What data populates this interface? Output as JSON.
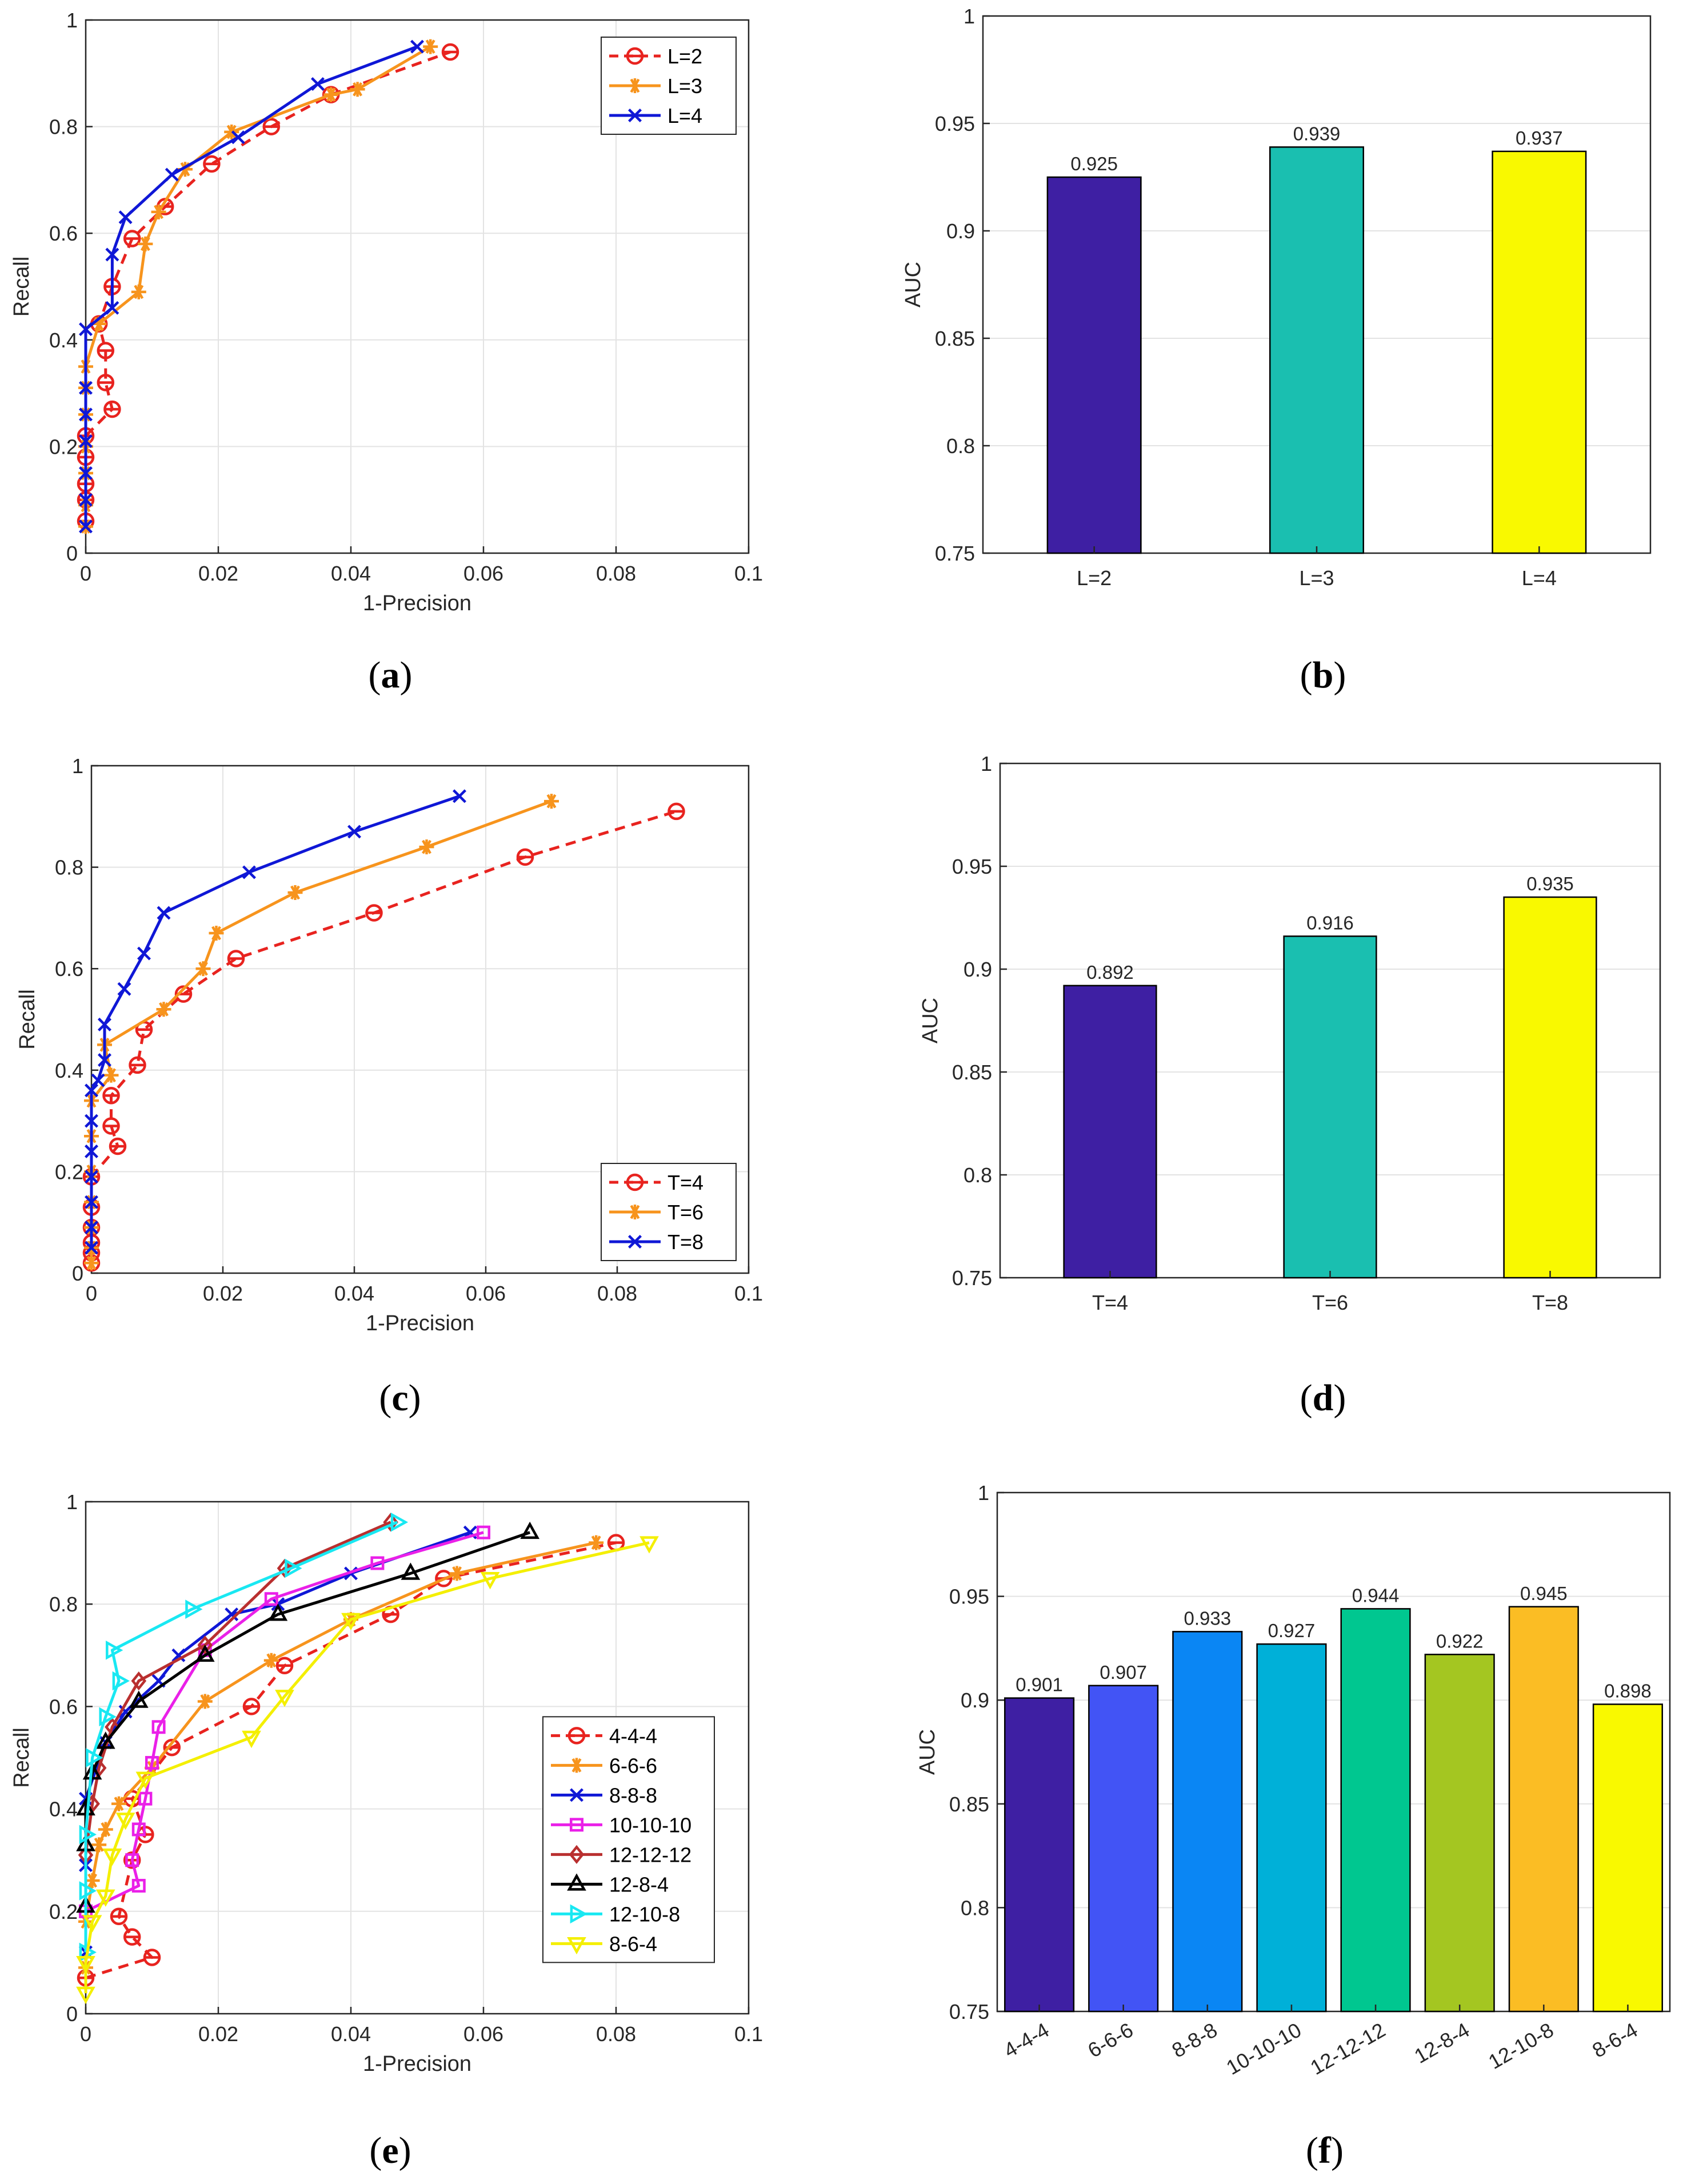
{
  "chart_data": [
    {
      "id": "a",
      "type": "line",
      "caption": "a",
      "xlabel": "1-Precision",
      "ylabel": "Recall",
      "xlim": [
        0,
        0.1
      ],
      "ylim": [
        0,
        1
      ],
      "xticks": [
        "0",
        "0.02",
        "0.04",
        "0.06",
        "0.08",
        "0.1"
      ],
      "yticks": [
        "0",
        "0.2",
        "0.4",
        "0.6",
        "0.8",
        "1"
      ],
      "grid": true,
      "legend_position": "top-right",
      "series": [
        {
          "name": "L=2",
          "color": "#e8231f",
          "dash": true,
          "marker": "circle-bar",
          "x": [
            0,
            0,
            0,
            0,
            0,
            0.004,
            0.003,
            0.003,
            0.002,
            0.004,
            0.007,
            0.012,
            0.019,
            0.028,
            0.037,
            0.055
          ],
          "y": [
            0.06,
            0.1,
            0.13,
            0.18,
            0.22,
            0.27,
            0.32,
            0.38,
            0.43,
            0.5,
            0.59,
            0.65,
            0.73,
            0.8,
            0.86,
            0.94
          ]
        },
        {
          "name": "L=3",
          "color": "#f7941d",
          "dash": false,
          "marker": "asterisk",
          "x": [
            0,
            0,
            0,
            0,
            0,
            0,
            0,
            0.002,
            0.008,
            0.009,
            0.011,
            0.015,
            0.022,
            0.037,
            0.041,
            0.052
          ],
          "y": [
            0.05,
            0.09,
            0.15,
            0.2,
            0.26,
            0.31,
            0.35,
            0.43,
            0.49,
            0.58,
            0.64,
            0.72,
            0.79,
            0.86,
            0.87,
            0.95
          ]
        },
        {
          "name": "L=4",
          "color": "#0f17d6",
          "dash": false,
          "marker": "x",
          "x": [
            0,
            0,
            0,
            0,
            0,
            0,
            0,
            0.004,
            0.004,
            0.006,
            0.013,
            0.023,
            0.035,
            0.05
          ],
          "y": [
            0.05,
            0.1,
            0.15,
            0.21,
            0.26,
            0.31,
            0.42,
            0.46,
            0.56,
            0.63,
            0.71,
            0.78,
            0.88,
            0.95
          ]
        }
      ]
    },
    {
      "id": "b",
      "type": "bar",
      "caption": "b",
      "ylabel": "AUC",
      "ylim": [
        0.75,
        1
      ],
      "yticks": [
        "0.75",
        "0.8",
        "0.85",
        "0.9",
        "0.95",
        "1"
      ],
      "grid": true,
      "categories": [
        "L=2",
        "L=3",
        "L=4"
      ],
      "values": [
        0.925,
        0.939,
        0.937
      ],
      "value_labels": [
        "0.925",
        "0.939",
        "0.937"
      ],
      "colors": [
        "#3e1fa3",
        "#1abfb0",
        "#f9f900"
      ]
    },
    {
      "id": "c",
      "type": "line",
      "caption": "c",
      "xlabel": "1-Precision",
      "ylabel": "Recall",
      "xlim": [
        0,
        0.1
      ],
      "ylim": [
        0,
        1
      ],
      "xticks": [
        "0",
        "0.02",
        "0.04",
        "0.06",
        "0.08",
        "0.1"
      ],
      "yticks": [
        "0",
        "0.2",
        "0.4",
        "0.6",
        "0.8",
        "1"
      ],
      "grid": true,
      "legend_position": "bottom-right",
      "series": [
        {
          "name": "T=4",
          "color": "#e8231f",
          "dash": true,
          "marker": "circle-bar",
          "x": [
            0,
            0,
            0,
            0,
            0,
            0,
            0.004,
            0.003,
            0.003,
            0.007,
            0.008,
            0.014,
            0.022,
            0.043,
            0.066,
            0.089
          ],
          "y": [
            0.02,
            0.04,
            0.06,
            0.09,
            0.13,
            0.19,
            0.25,
            0.29,
            0.35,
            0.41,
            0.48,
            0.55,
            0.62,
            0.71,
            0.82,
            0.91
          ]
        },
        {
          "name": "T=6",
          "color": "#f7941d",
          "dash": false,
          "marker": "asterisk",
          "x": [
            0,
            0,
            0,
            0,
            0,
            0,
            0,
            0.003,
            0.002,
            0.011,
            0.017,
            0.019,
            0.031,
            0.051,
            0.07
          ],
          "y": [
            0.02,
            0.05,
            0.09,
            0.14,
            0.2,
            0.27,
            0.34,
            0.39,
            0.45,
            0.52,
            0.6,
            0.67,
            0.75,
            0.84,
            0.93
          ]
        },
        {
          "name": "T=8",
          "color": "#0f17d6",
          "dash": false,
          "marker": "x",
          "x": [
            0,
            0,
            0,
            0,
            0,
            0,
            0,
            0.001,
            0.002,
            0.002,
            0.005,
            0.008,
            0.011,
            0.024,
            0.04,
            0.056
          ],
          "y": [
            0.05,
            0.09,
            0.14,
            0.19,
            0.24,
            0.3,
            0.36,
            0.38,
            0.42,
            0.49,
            0.56,
            0.63,
            0.71,
            0.79,
            0.87,
            0.94
          ]
        }
      ]
    },
    {
      "id": "d",
      "type": "bar",
      "caption": "d",
      "ylabel": "AUC",
      "ylim": [
        0.75,
        1
      ],
      "yticks": [
        "0.75",
        "0.8",
        "0.85",
        "0.9",
        "0.95",
        "1"
      ],
      "grid": true,
      "categories": [
        "T=4",
        "T=6",
        "T=8"
      ],
      "values": [
        0.892,
        0.916,
        0.935
      ],
      "value_labels": [
        "0.892",
        "0.916",
        "0.935"
      ],
      "colors": [
        "#3e1fa3",
        "#1abfb0",
        "#f9f900"
      ]
    },
    {
      "id": "e",
      "type": "line",
      "caption": "e",
      "xlabel": "1-Precision",
      "ylabel": "Recall",
      "xlim": [
        0,
        0.1
      ],
      "ylim": [
        0,
        1
      ],
      "xticks": [
        "0",
        "0.02",
        "0.04",
        "0.06",
        "0.08",
        "0.1"
      ],
      "yticks": [
        "0",
        "0.2",
        "0.4",
        "0.6",
        "0.8",
        "1"
      ],
      "grid": true,
      "legend_position": "right",
      "series": [
        {
          "name": "4-4-4",
          "color": "#e8231f",
          "dash": true,
          "marker": "circle-bar",
          "x": [
            0,
            0.01,
            0.007,
            0.005,
            0.007,
            0.009,
            0.007,
            0.013,
            0.025,
            0.03,
            0.046,
            0.054,
            0.08
          ],
          "y": [
            0.07,
            0.11,
            0.15,
            0.19,
            0.3,
            0.35,
            0.42,
            0.52,
            0.6,
            0.68,
            0.78,
            0.85,
            0.92
          ]
        },
        {
          "name": "6-6-6",
          "color": "#f7941d",
          "dash": false,
          "marker": "asterisk",
          "x": [
            0,
            0,
            0.001,
            0.002,
            0.003,
            0.005,
            0.01,
            0.018,
            0.028,
            0.04,
            0.056,
            0.077
          ],
          "y": [
            0.09,
            0.18,
            0.26,
            0.33,
            0.36,
            0.41,
            0.48,
            0.61,
            0.69,
            0.77,
            0.86,
            0.92
          ]
        },
        {
          "name": "8-8-8",
          "color": "#0f17d6",
          "dash": false,
          "marker": "x",
          "x": [
            0,
            0,
            0,
            0.003,
            0.006,
            0.011,
            0.014,
            0.022,
            0.029,
            0.04,
            0.058
          ],
          "y": [
            0.12,
            0.29,
            0.42,
            0.53,
            0.59,
            0.65,
            0.7,
            0.78,
            0.8,
            0.86,
            0.94
          ]
        },
        {
          "name": "10-10-10",
          "color": "#ea20e8",
          "dash": false,
          "marker": "square",
          "x": [
            0,
            0.008,
            0.007,
            0.008,
            0.009,
            0.01,
            0.011,
            0.018,
            0.028,
            0.044,
            0.06
          ],
          "y": [
            0.2,
            0.25,
            0.3,
            0.36,
            0.42,
            0.49,
            0.56,
            0.71,
            0.81,
            0.88,
            0.94
          ]
        },
        {
          "name": "12-12-12",
          "color": "#b92f2f",
          "dash": false,
          "marker": "diamond",
          "x": [
            0,
            0.001,
            0.002,
            0.004,
            0.008,
            0.018,
            0.03,
            0.046
          ],
          "y": [
            0.31,
            0.41,
            0.48,
            0.56,
            0.65,
            0.72,
            0.87,
            0.96
          ]
        },
        {
          "name": "12-8-4",
          "color": "#000000",
          "dash": false,
          "marker": "triangle",
          "x": [
            0,
            0,
            0,
            0.001,
            0.003,
            0.008,
            0.018,
            0.029,
            0.049,
            0.067
          ],
          "y": [
            0.21,
            0.33,
            0.4,
            0.47,
            0.53,
            0.61,
            0.7,
            0.78,
            0.86,
            0.94
          ]
        },
        {
          "name": "12-10-8",
          "color": "#19e8f2",
          "dash": false,
          "marker": "triangle-right",
          "x": [
            0,
            0,
            0,
            0.001,
            0.003,
            0.005,
            0.004,
            0.016,
            0.031,
            0.047
          ],
          "y": [
            0.12,
            0.24,
            0.35,
            0.5,
            0.58,
            0.65,
            0.71,
            0.79,
            0.87,
            0.96
          ]
        },
        {
          "name": "8-6-4",
          "color": "#f4ef00",
          "dash": false,
          "marker": "triangle-down",
          "x": [
            0,
            0,
            0.001,
            0.003,
            0.004,
            0.006,
            0.009,
            0.025,
            0.03,
            0.04,
            0.061,
            0.085
          ],
          "y": [
            0.04,
            0.1,
            0.18,
            0.23,
            0.31,
            0.38,
            0.46,
            0.54,
            0.62,
            0.77,
            0.85,
            0.92
          ]
        }
      ]
    },
    {
      "id": "f",
      "type": "bar",
      "caption": "f",
      "ylabel": "AUC",
      "ylim": [
        0.75,
        1
      ],
      "yticks": [
        "0.75",
        "0.8",
        "0.85",
        "0.9",
        "0.95",
        "1"
      ],
      "grid": true,
      "categories": [
        "4-4-4",
        "6-6-6",
        "8-8-8",
        "10-10-10",
        "12-12-12",
        "12-8-4",
        "12-10-8",
        "8-6-4"
      ],
      "values": [
        0.901,
        0.907,
        0.933,
        0.927,
        0.944,
        0.922,
        0.945,
        0.898
      ],
      "value_labels": [
        "0.901",
        "0.907",
        "0.933",
        "0.927",
        "0.944",
        "0.922",
        "0.945",
        "0.898"
      ],
      "colors": [
        "#3e1fa3",
        "#4254f5",
        "#0a86f4",
        "#00b0d8",
        "#00c790",
        "#a4c621",
        "#fbbd24",
        "#f9f900"
      ],
      "rotated_xticks": true
    }
  ]
}
